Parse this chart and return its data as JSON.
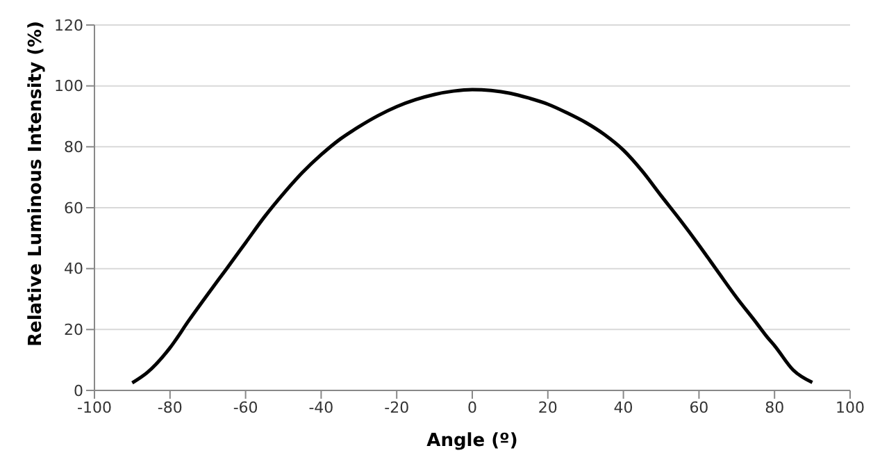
{
  "chart_data": {
    "type": "line",
    "xlabel": "Angle (º)",
    "ylabel": "Relative Luminous Intensity (%)",
    "x": [
      -90,
      -86,
      -80,
      -75,
      -70,
      -65,
      -60,
      -55,
      -50,
      -45,
      -40,
      -35,
      -30,
      -25,
      -20,
      -15,
      -10,
      -5,
      0,
      5,
      10,
      15,
      20,
      25,
      30,
      35,
      40,
      45,
      50,
      55,
      60,
      65,
      70,
      75,
      78,
      80,
      85,
      90
    ],
    "series": [
      {
        "color": "#000000",
        "values": [
          2.5,
          5.9,
          14,
          23,
          31.6,
          40,
          48.5,
          57,
          64.6,
          71.5,
          77.4,
          82.5,
          86.6,
          90.2,
          93.2,
          95.5,
          97.2,
          98.3,
          98.8,
          98.5,
          97.6,
          96,
          94,
          91.2,
          88,
          84,
          78.9,
          72,
          63.9,
          56,
          47.7,
          39,
          30.4,
          22.5,
          17.6,
          14.7,
          6.6,
          2.6
        ]
      }
    ],
    "xlim": [
      -100,
      100
    ],
    "xticks": [
      -100,
      -80,
      -60,
      -40,
      -20,
      0,
      20,
      40,
      60,
      80,
      100
    ],
    "ylim": [
      0,
      120
    ],
    "yticks": [
      0,
      20,
      40,
      60,
      80,
      100,
      120
    ],
    "grid": "y",
    "marker": "none",
    "line_style": "solid"
  }
}
